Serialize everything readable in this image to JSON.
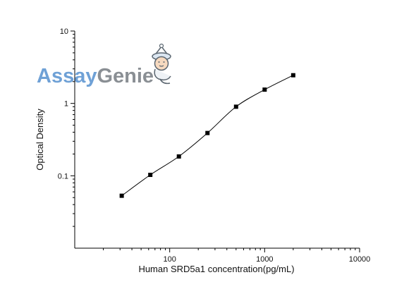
{
  "chart_data": {
    "type": "scatter",
    "xlabel": "Human SRD5a1 concentration(pg/mL)",
    "ylabel": "Optical Density",
    "xscale": "log",
    "yscale": "log",
    "xlim": [
      10,
      10000
    ],
    "ylim": [
      0.01,
      10
    ],
    "xticks": [
      100,
      1000,
      10000
    ],
    "xtick_labels": [
      "100",
      "1000",
      "10000"
    ],
    "yticks": [
      0.1,
      1,
      10
    ],
    "ytick_labels": [
      "0.1",
      "1",
      "10"
    ],
    "grid": false,
    "legend": "none",
    "series": [
      {
        "x": [
          31.25,
          62.5,
          125,
          250,
          500,
          1000,
          2000
        ],
        "y": [
          0.053,
          0.103,
          0.185,
          0.39,
          0.9,
          1.55,
          2.45
        ],
        "marker": "square",
        "color": "#000000",
        "fit": "four-parameter logistic curve"
      }
    ]
  },
  "watermark": {
    "part1": "Assay",
    "part2": "Genie",
    "color1": "#6fa1d6",
    "color2": "#8a8f94",
    "mascot_icon": "genie-mascot-icon"
  }
}
